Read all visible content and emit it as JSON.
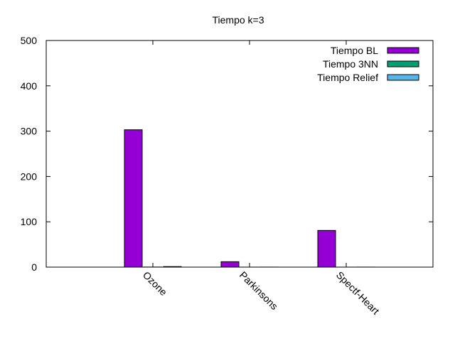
{
  "chart_data": {
    "type": "bar",
    "title": "Tiempo k=3",
    "xlabel": "",
    "ylabel": "",
    "ylim": [
      0,
      500
    ],
    "yticks": [
      0,
      100,
      200,
      300,
      400,
      500
    ],
    "categories": [
      "Ozone",
      "Parkinsons",
      "Spectf-Heart"
    ],
    "series": [
      {
        "name": "Tiempo BL",
        "color": "#9400d3",
        "values": [
          303,
          12,
          81
        ]
      },
      {
        "name": "Tiempo 3NN",
        "color": "#009e73",
        "values": [
          0.2,
          0.05,
          0.05
        ]
      },
      {
        "name": "Tiempo Relief",
        "color": "#56b4e9",
        "values": [
          1.2,
          0.1,
          0.1
        ]
      }
    ],
    "legend_position": "top-right",
    "grid": false
  }
}
